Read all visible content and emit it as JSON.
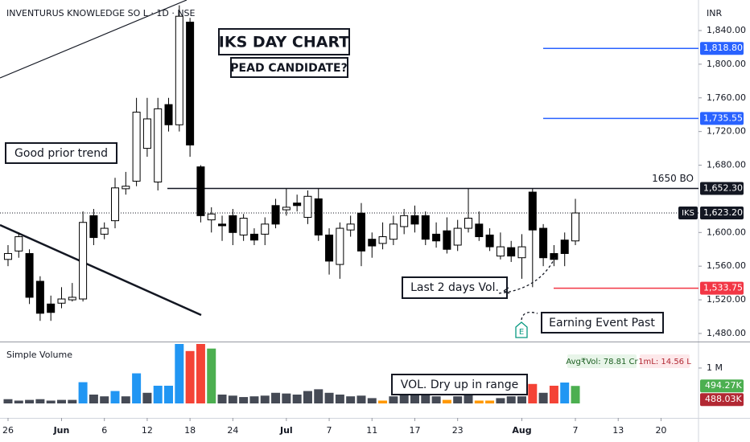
{
  "header": {
    "title": "INVENTURUS KNOWLEDGE SO L · 1D · NSE"
  },
  "chart_data": [
    {
      "type": "candlestick",
      "currency": "INR",
      "open": [
        1568,
        1578,
        1575,
        1542,
        1515,
        1516,
        1520,
        1521,
        1620,
        1598,
        1614,
        1652,
        1661,
        1700,
        1660,
        1752,
        1728,
        1850,
        1678,
        1615,
        1610,
        1620,
        1597,
        1598,
        1598,
        1632,
        1627,
        1635,
        1618,
        1640,
        1597,
        1562,
        1603,
        1623,
        1592,
        1587,
        1592,
        1607,
        1620,
        1620,
        1598,
        1602,
        1585,
        1605,
        1610,
        1597,
        1572,
        1582,
        1570,
        1648,
        1605,
        1575,
        1591,
        1590
      ],
      "high": [
        1585,
        1600,
        1580,
        1548,
        1525,
        1535,
        1540,
        1625,
        1628,
        1612,
        1665,
        1672,
        1760,
        1760,
        1760,
        1760,
        1870,
        1855,
        1680,
        1630,
        1620,
        1628,
        1622,
        1605,
        1618,
        1640,
        1652,
        1645,
        1650,
        1652,
        1605,
        1612,
        1620,
        1635,
        1600,
        1612,
        1620,
        1628,
        1632,
        1625,
        1612,
        1618,
        1615,
        1652,
        1625,
        1605,
        1600,
        1590,
        1598,
        1652,
        1610,
        1585,
        1600,
        1640
      ],
      "low": [
        1560,
        1570,
        1515,
        1495,
        1495,
        1510,
        1518,
        1518,
        1585,
        1592,
        1605,
        1645,
        1655,
        1690,
        1650,
        1720,
        1720,
        1690,
        1612,
        1600,
        1590,
        1585,
        1590,
        1585,
        1585,
        1605,
        1620,
        1625,
        1610,
        1590,
        1550,
        1545,
        1595,
        1560,
        1570,
        1580,
        1585,
        1598,
        1600,
        1585,
        1582,
        1575,
        1578,
        1600,
        1590,
        1578,
        1568,
        1565,
        1545,
        1535,
        1560,
        1560,
        1560,
        1585
      ],
      "close": [
        1575,
        1595,
        1523,
        1504,
        1505,
        1521,
        1523,
        1612,
        1594,
        1605,
        1653,
        1655,
        1743,
        1735,
        1747,
        1728,
        1857,
        1704,
        1620,
        1622,
        1608,
        1600,
        1617,
        1591,
        1610,
        1610,
        1630,
        1632,
        1643,
        1597,
        1566,
        1605,
        1610,
        1578,
        1584,
        1595,
        1610,
        1620,
        1610,
        1592,
        1590,
        1580,
        1605,
        1617,
        1595,
        1583,
        1583,
        1572,
        1583,
        1603,
        1570,
        1568,
        1575,
        1623.2
      ],
      "up_color": "#ffffff",
      "down_color": "#000000",
      "xlim": [
        -0.75,
        64.5
      ],
      "xticks": [
        {
          "value": 0,
          "label": "26"
        },
        {
          "value": 5,
          "label": "Jun"
        },
        {
          "value": 9,
          "label": "6"
        },
        {
          "value": 13,
          "label": "12"
        },
        {
          "value": 17,
          "label": "18"
        },
        {
          "value": 21,
          "label": "24"
        },
        {
          "value": 26,
          "label": "Jul"
        },
        {
          "value": 30,
          "label": "7"
        },
        {
          "value": 34,
          "label": "11"
        },
        {
          "value": 38,
          "label": "17"
        },
        {
          "value": 42,
          "label": "23"
        },
        {
          "value": 48,
          "label": "Aug"
        },
        {
          "value": 53,
          "label": "7"
        },
        {
          "value": 57,
          "label": "13"
        },
        {
          "value": 61,
          "label": "20"
        }
      ],
      "ylim": [
        1470.4,
        1876.3
      ],
      "yticks": [
        {
          "value": 1840,
          "label": "1,840.00"
        },
        {
          "value": 1800,
          "label": "1,800.00"
        },
        {
          "value": 1760,
          "label": "1,760.00"
        },
        {
          "value": 1720,
          "label": "1,720.00"
        },
        {
          "value": 1680,
          "label": "1,680.00"
        },
        {
          "value": 1600,
          "label": "1,600.00"
        },
        {
          "value": 1560,
          "label": "1,560.00"
        },
        {
          "value": 1520,
          "label": "1,520.00"
        },
        {
          "value": 1480,
          "label": "1,480.00"
        }
      ],
      "levels": [
        {
          "value": 1818.8,
          "label": "1,818.80",
          "color": "#2962ff"
        },
        {
          "value": 1735.55,
          "label": "1,735.55",
          "color": "#2962ff"
        },
        {
          "value": 1652.3,
          "label": "1,652.30",
          "color": "#131722",
          "note": "1650 BO"
        },
        {
          "value": 1533.75,
          "label": "1,533.75",
          "color": "#f23645"
        }
      ],
      "last": {
        "value": 1623.2,
        "label": "1,623.20",
        "symbol": "IKS"
      },
      "annotations": [
        "IKS DAY CHART",
        "PEAD CANDIDATE?",
        "Good prior trend",
        "Last 2 days Vol.",
        "Earning Event Past",
        "E"
      ]
    },
    {
      "type": "bar",
      "title": "Simple Volume",
      "values": [
        0.12,
        0.08,
        0.1,
        0.12,
        0.08,
        0.1,
        0.1,
        0.6,
        0.25,
        0.2,
        0.35,
        0.2,
        0.85,
        0.3,
        0.5,
        0.5,
        1.68,
        1.48,
        1.68,
        1.55,
        0.25,
        0.22,
        0.18,
        0.2,
        0.22,
        0.3,
        0.28,
        0.25,
        0.35,
        0.4,
        0.3,
        0.25,
        0.2,
        0.22,
        0.15,
        0.08,
        0.2,
        0.35,
        0.3,
        0.25,
        0.2,
        0.1,
        0.2,
        0.3,
        0.08,
        0.08,
        0.15,
        0.2,
        0.2,
        0.55,
        0.3,
        0.5,
        0.59,
        0.49427
      ],
      "colors": [
        "#454a55",
        "#454a55",
        "#454a55",
        "#454a55",
        "#454a55",
        "#454a55",
        "#454a55",
        "#2196f3",
        "#454a55",
        "#454a55",
        "#2196f3",
        "#454a55",
        "#2196f3",
        "#454a55",
        "#2196f3",
        "#2196f3",
        "#2196f3",
        "#f44336",
        "#f44336",
        "#4caf50",
        "#454a55",
        "#454a55",
        "#454a55",
        "#454a55",
        "#454a55",
        "#454a55",
        "#454a55",
        "#454a55",
        "#454a55",
        "#454a55",
        "#454a55",
        "#454a55",
        "#454a55",
        "#454a55",
        "#454a55",
        "#ff9800",
        "#454a55",
        "#454a55",
        "#454a55",
        "#454a55",
        "#454a55",
        "#ff9800",
        "#454a55",
        "#454a55",
        "#ff9800",
        "#ff9800",
        "#454a55",
        "#454a55",
        "#454a55",
        "#f44336",
        "#454a55",
        "#f44336",
        "#2196f3",
        "#4caf50"
      ],
      "ylim": [
        0,
        1.68
      ],
      "yticks": [
        {
          "value": 1,
          "label": "1 M"
        }
      ],
      "stats": [
        "Avg₹Vol: 78.81 Cr",
        "1mL: 14.56 L"
      ],
      "last_labels": [
        {
          "value": 0.49427,
          "label": "494.27K",
          "color": "#4caf50"
        },
        {
          "value": 0.48803,
          "label": "488.03K",
          "color": "#b22833"
        }
      ],
      "annotation": "VOL. Dry up in range"
    }
  ]
}
